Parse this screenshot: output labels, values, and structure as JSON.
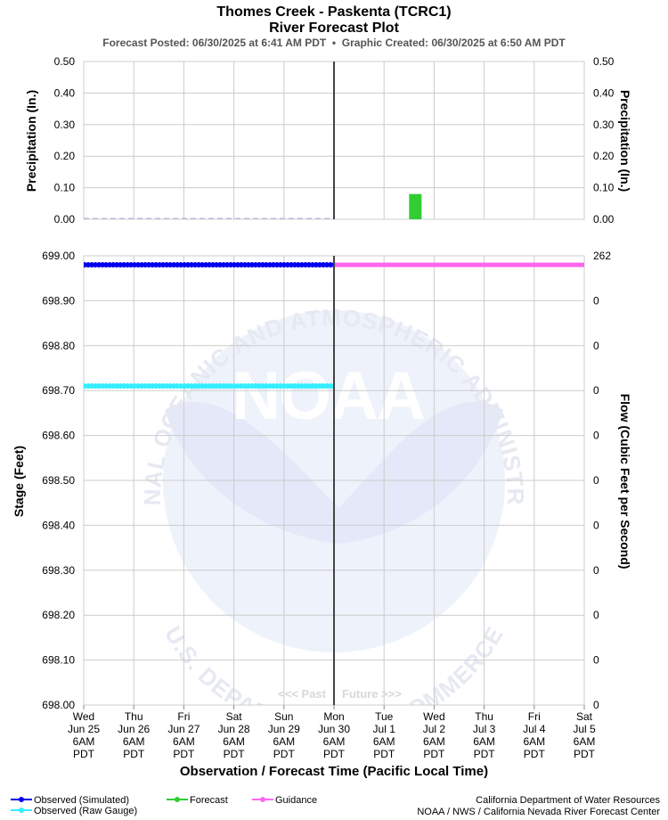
{
  "header": {
    "title_line1": "Thomes Creek - Paskenta (TCRC1)",
    "title_line2": "River Forecast Plot",
    "subtitle": "Forecast Posted: 06/30/2025 at 6:41 AM PDT  •  Graphic Created: 06/30/2025 at 6:50 AM PDT"
  },
  "chart_data": [
    {
      "type": "bar",
      "name": "precipitation",
      "ylabel": "Precipitation (In.)",
      "ylabel_right": "Precipitation (In.)",
      "ylim": [
        0,
        0.5
      ],
      "yticks": [
        "0.00",
        "0.10",
        "0.20",
        "0.30",
        "0.40",
        "0.50"
      ],
      "grid": true,
      "series": [
        {
          "kind": "forecast",
          "color": "#33cc33",
          "bars": [
            {
              "start": "Jul 1 18:00",
              "end": "Jul 2 00:00",
              "value": 0.08
            }
          ]
        },
        {
          "kind": "observed",
          "color": "#b0b0ee",
          "bars": [],
          "value": 0.0
        }
      ]
    },
    {
      "type": "line",
      "name": "stage-flow",
      "ylabel": "Stage (Feet)",
      "ylabel_right": "Flow (Cubic Feet per Second)",
      "ylim": [
        698.0,
        699.0
      ],
      "yticks": [
        "698.00",
        "698.10",
        "698.20",
        "698.30",
        "698.40",
        "698.50",
        "698.60",
        "698.70",
        "698.80",
        "698.90",
        "699.00"
      ],
      "yticks_right": [
        "0",
        "0",
        "0",
        "0",
        "0",
        "0",
        "0",
        "0",
        "0",
        "0",
        "262"
      ],
      "grid": true,
      "xlabel": "Observation / Forecast Time (Pacific Local Time)",
      "x_ticks": [
        {
          "dow": "Wed",
          "date": "Jun 25",
          "time": "6AM",
          "tz": "PDT"
        },
        {
          "dow": "Thu",
          "date": "Jun 26",
          "time": "6AM",
          "tz": "PDT"
        },
        {
          "dow": "Fri",
          "date": "Jun 27",
          "time": "6AM",
          "tz": "PDT"
        },
        {
          "dow": "Sat",
          "date": "Jun 28",
          "time": "6AM",
          "tz": "PDT"
        },
        {
          "dow": "Sun",
          "date": "Jun 29",
          "time": "6AM",
          "tz": "PDT"
        },
        {
          "dow": "Mon",
          "date": "Jun 30",
          "time": "6AM",
          "tz": "PDT"
        },
        {
          "dow": "Tue",
          "date": "Jul 1",
          "time": "6AM",
          "tz": "PDT"
        },
        {
          "dow": "Wed",
          "date": "Jul 2",
          "time": "6AM",
          "tz": "PDT"
        },
        {
          "dow": "Thu",
          "date": "Jul 3",
          "time": "6AM",
          "tz": "PDT"
        },
        {
          "dow": "Fri",
          "date": "Jul 4",
          "time": "6AM",
          "tz": "PDT"
        },
        {
          "dow": "Sat",
          "date": "Jul 5",
          "time": "6AM",
          "tz": "PDT"
        }
      ],
      "now": "Jun 30 6AM",
      "past_label": "<<< Past",
      "future_label": "Future >>>",
      "series": [
        {
          "name": "Observed (Simulated)",
          "color": "#0000ee",
          "x": [
            "Jun 25 6AM",
            "Jun 30 6AM"
          ],
          "y": [
            698.98,
            698.98
          ]
        },
        {
          "name": "Observed (Raw Gauge)",
          "color": "#33eeff",
          "x": [
            "Jun 25 6AM",
            "Jun 30 6AM"
          ],
          "y": [
            698.71,
            698.71
          ]
        },
        {
          "name": "Guidance",
          "color": "#ff66ee",
          "x": [
            "Jun 30 6AM",
            "Jul 5 6AM"
          ],
          "y": [
            698.98,
            698.98
          ]
        }
      ]
    }
  ],
  "legend": {
    "items": [
      {
        "label": "Observed (Simulated)",
        "color": "#0000ee"
      },
      {
        "label": "Forecast",
        "color": "#33cc33"
      },
      {
        "label": "Guidance",
        "color": "#ff66ee"
      },
      {
        "label": "Observed (Raw Gauge)",
        "color": "#33eeff"
      }
    ]
  },
  "watermark": {
    "text": "NOAA",
    "ring_text": "NATIONAL OCEANIC AND ATMOSPHERIC ADMINISTRATION",
    "ring_text_bottom": "U.S. DEPARTMENT OF COMMERCE"
  },
  "credits": {
    "line1": "California Department of Water Resources",
    "line2": "NOAA / NWS / California Nevada River Forecast Center"
  }
}
